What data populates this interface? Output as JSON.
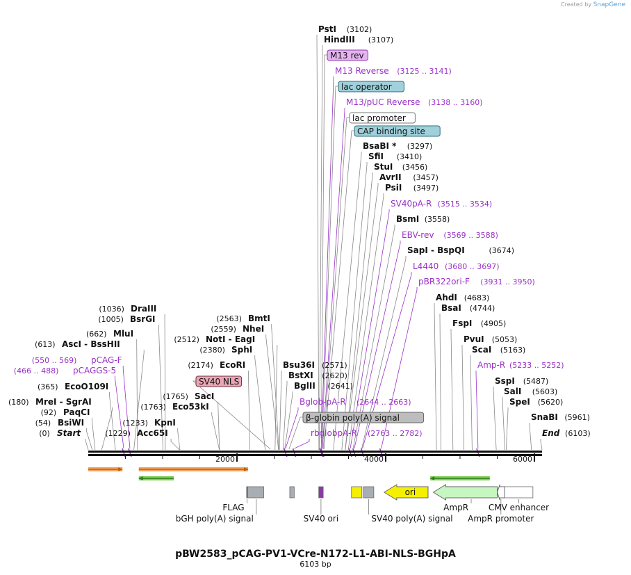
{
  "header": {
    "credit_prefix": "Created by",
    "credit_brand": "SnapGene"
  },
  "plasmid": {
    "name": "pBW2583_pCAG-PV1-VCre-N172-L1-ABI-NLS-BGHpA",
    "length": "6103 bp",
    "total_bp": 6103
  },
  "colors": {
    "enzyme": "#000000",
    "primer": "#9b30c8",
    "line": "#777777",
    "backbone": "#111111"
  },
  "axis": {
    "ticks": [
      {
        "bp": 2000,
        "label": "2000"
      },
      {
        "bp": 4000,
        "label": "4000"
      },
      {
        "bp": 6000,
        "label": "6000"
      }
    ]
  },
  "sites": [
    {
      "name": "Start",
      "pos": "(0)",
      "bp": 0,
      "kind": "enzyme",
      "italic": true
    },
    {
      "name": "BsiWI",
      "pos": "(54)",
      "bp": 54,
      "kind": "enzyme"
    },
    {
      "name": "PaqCI",
      "pos": "(92)",
      "bp": 92,
      "kind": "enzyme"
    },
    {
      "name": "MreI  -  SgrAI",
      "pos": "(180)",
      "bp": 180,
      "kind": "enzyme"
    },
    {
      "name": "EcoO109I",
      "pos": "(365)",
      "bp": 365,
      "kind": "enzyme"
    },
    {
      "name": "pCAGGS-5",
      "pos": "(466 .. 488)",
      "bp": 477,
      "kind": "primer"
    },
    {
      "name": "pCAG-F",
      "pos": "(550 .. 569)",
      "bp": 560,
      "kind": "primer"
    },
    {
      "name": "AscI  -  BssHII",
      "pos": "(613)",
      "bp": 613,
      "kind": "enzyme"
    },
    {
      "name": "MluI",
      "pos": "(662)",
      "bp": 662,
      "kind": "enzyme"
    },
    {
      "name": "BsrGI",
      "pos": "(1005)",
      "bp": 1005,
      "kind": "enzyme"
    },
    {
      "name": "DraIII",
      "pos": "(1036)",
      "bp": 1036,
      "kind": "enzyme"
    },
    {
      "name": "Acc65I",
      "pos": "(1229)",
      "bp": 1229,
      "kind": "enzyme"
    },
    {
      "name": "KpnI",
      "pos": "(1233)",
      "bp": 1233,
      "kind": "enzyme"
    },
    {
      "name": "Eco53kI",
      "pos": "(1763)",
      "bp": 1763,
      "kind": "enzyme"
    },
    {
      "name": "SacI",
      "pos": "(1765)",
      "bp": 1765,
      "kind": "enzyme"
    },
    {
      "name": "EcoRI",
      "pos": "(2174)",
      "bp": 2174,
      "kind": "enzyme"
    },
    {
      "name": "SphI",
      "pos": "(2380)",
      "bp": 2380,
      "kind": "enzyme"
    },
    {
      "name": "NotI  -  EagI",
      "pos": "(2512)",
      "bp": 2512,
      "kind": "enzyme"
    },
    {
      "name": "NheI",
      "pos": "(2559)",
      "bp": 2559,
      "kind": "enzyme"
    },
    {
      "name": "BmtI",
      "pos": "(2563)",
      "bp": 2563,
      "kind": "enzyme"
    },
    {
      "name": "Bsu36I",
      "pos": "(2571)",
      "bp": 2571,
      "kind": "enzyme"
    },
    {
      "name": "BstXI",
      "pos": "(2620)",
      "bp": 2620,
      "kind": "enzyme"
    },
    {
      "name": "BglII",
      "pos": "(2641)",
      "bp": 2641,
      "kind": "enzyme"
    },
    {
      "name": "Bglob-pA-R",
      "pos": "(2644 .. 2663)",
      "bp": 2653,
      "kind": "primer"
    },
    {
      "name": "rbglobpA-R",
      "pos": "(2763 .. 2782)",
      "bp": 2772,
      "kind": "primer"
    },
    {
      "name": "PstI",
      "pos": "(3102)",
      "bp": 3102,
      "kind": "enzyme"
    },
    {
      "name": "HindIII",
      "pos": "(3107)",
      "bp": 3107,
      "kind": "enzyme"
    },
    {
      "name": "M13 Reverse",
      "pos": "(3125 .. 3141)",
      "bp": 3133,
      "kind": "primer"
    },
    {
      "name": "M13/pUC Reverse",
      "pos": "(3138 .. 3160)",
      "bp": 3149,
      "kind": "primer"
    },
    {
      "name": "BsaBI *",
      "pos": "(3297)",
      "bp": 3297,
      "kind": "enzyme"
    },
    {
      "name": "SfiI",
      "pos": "(3410)",
      "bp": 3410,
      "kind": "enzyme"
    },
    {
      "name": "StuI",
      "pos": "(3456)",
      "bp": 3456,
      "kind": "enzyme"
    },
    {
      "name": "AvrII",
      "pos": "(3457)",
      "bp": 3457,
      "kind": "enzyme"
    },
    {
      "name": "PsiI",
      "pos": "(3497)",
      "bp": 3497,
      "kind": "enzyme"
    },
    {
      "name": "SV40pA-R",
      "pos": "(3515 .. 3534)",
      "bp": 3524,
      "kind": "primer"
    },
    {
      "name": "BsmI",
      "pos": "(3558)",
      "bp": 3558,
      "kind": "enzyme"
    },
    {
      "name": "EBV-rev",
      "pos": "(3569 .. 3588)",
      "bp": 3578,
      "kind": "primer"
    },
    {
      "name": "SapI  -  BspQI",
      "pos": "(3674)",
      "bp": 3674,
      "kind": "enzyme"
    },
    {
      "name": "L4440",
      "pos": "(3680 .. 3697)",
      "bp": 3688,
      "kind": "primer"
    },
    {
      "name": "pBR322ori-F",
      "pos": "(3931 .. 3950)",
      "bp": 3940,
      "kind": "primer"
    },
    {
      "name": "AhdI",
      "pos": "(4683)",
      "bp": 4683,
      "kind": "enzyme"
    },
    {
      "name": "BsaI",
      "pos": "(4744)",
      "bp": 4744,
      "kind": "enzyme"
    },
    {
      "name": "FspI",
      "pos": "(4905)",
      "bp": 4905,
      "kind": "enzyme"
    },
    {
      "name": "PvuI",
      "pos": "(5053)",
      "bp": 5053,
      "kind": "enzyme"
    },
    {
      "name": "ScaI",
      "pos": "(5163)",
      "bp": 5163,
      "kind": "enzyme"
    },
    {
      "name": "Amp-R",
      "pos": "(5233 .. 5252)",
      "bp": 5242,
      "kind": "primer"
    },
    {
      "name": "SspI",
      "pos": "(5487)",
      "bp": 5487,
      "kind": "enzyme"
    },
    {
      "name": "SalI",
      "pos": "(5603)",
      "bp": 5603,
      "kind": "enzyme"
    },
    {
      "name": "SpeI",
      "pos": "(5620)",
      "bp": 5620,
      "kind": "enzyme"
    },
    {
      "name": "SnaBI",
      "pos": "(5961)",
      "bp": 5961,
      "kind": "enzyme"
    },
    {
      "name": "End",
      "pos": "(6103)",
      "bp": 6103,
      "kind": "enzyme",
      "italic": true
    }
  ],
  "boxed_labels": [
    {
      "name": "M13 rev",
      "bp": 3133,
      "fill": "#e5b4f0",
      "stroke": "#8a3aa8"
    },
    {
      "name": "lac operator",
      "bp": 3140,
      "fill": "#9fd0db",
      "stroke": "#2d6c7a"
    },
    {
      "name": "lac promoter",
      "bp": 3160,
      "fill": "#ffffff",
      "stroke": "#777777"
    },
    {
      "name": "CAP binding site",
      "bp": 3170,
      "fill": "#9fd0db",
      "stroke": "#2d6c7a"
    },
    {
      "name": "SV40 NLS",
      "bp": 2450,
      "fill": "#e7a7b5",
      "stroke": "#7a2d3d"
    },
    {
      "name": "β-globin poly(A) signal",
      "bp": 2700,
      "fill": "#bdbdbd",
      "stroke": "#666666"
    }
  ],
  "feature_arrows": [
    {
      "name": "",
      "from": 0,
      "to": 460,
      "fill": "#f4a460",
      "stroke": "#c06000",
      "direction": "forward"
    },
    {
      "name": "",
      "from": 680,
      "to": 2150,
      "fill": "#f4a460",
      "stroke": "#c06000",
      "direction": "forward"
    },
    {
      "name": "",
      "from": 680,
      "to": 1150,
      "fill": "#7fcf4f",
      "stroke": "#2f7f1f",
      "direction": "reverse"
    },
    {
      "name": "",
      "from": 4600,
      "to": 5400,
      "fill": "#7fcf4f",
      "stroke": "#2f7f1f",
      "direction": "reverse"
    }
  ],
  "bottom_features": [
    {
      "name": "",
      "from": 2130,
      "to": 2142,
      "fill": "#7a2d3d",
      "shape": "box"
    },
    {
      "name": "",
      "from": 2142,
      "to": 2360,
      "fill": "#a9aeb5",
      "shape": "box"
    },
    {
      "name": "",
      "from": 2710,
      "to": 2770,
      "fill": "#a9aeb5",
      "shape": "box"
    },
    {
      "name": "",
      "from": 3100,
      "to": 3160,
      "fill": "#8a3aa8",
      "shape": "box"
    },
    {
      "name": "",
      "from": 3540,
      "to": 3680,
      "fill": "#f5f000",
      "shape": "box"
    },
    {
      "name": "",
      "from": 3700,
      "to": 3840,
      "fill": "#a9aeb5",
      "shape": "box"
    },
    {
      "name": "ori",
      "from": 3980,
      "to": 4570,
      "fill": "#f5f000",
      "shape": "arrow-left"
    },
    {
      "name": "",
      "from": 4640,
      "to": 5500,
      "fill": "#c7f7c0",
      "shape": "arrow-left"
    },
    {
      "name": "",
      "from": 5500,
      "to": 5600,
      "fill": "#ffffff",
      "shape": "arrow-left"
    },
    {
      "name": "",
      "from": 5600,
      "to": 5980,
      "fill": "#ffffff",
      "shape": "box"
    }
  ],
  "feature_labels": [
    {
      "text": "FLAG",
      "bp": 2136,
      "row": 1,
      "anchor": "end"
    },
    {
      "text": "bGH poly(A) signal",
      "bp": 2260,
      "row": 2,
      "anchor": "end"
    },
    {
      "text": "SV40 ori",
      "bp": 3130,
      "row": 2,
      "anchor": "middle"
    },
    {
      "text": "SV40 poly(A) signal",
      "bp": 3770,
      "row": 2,
      "anchor": "start"
    },
    {
      "text": "AmpR",
      "bp": 5150,
      "row": 1,
      "anchor": "end"
    },
    {
      "text": "AmpR promoter",
      "bp": 5550,
      "row": 2,
      "anchor": "middle"
    },
    {
      "text": "CMV enhancer",
      "bp": 5790,
      "row": 1,
      "anchor": "middle"
    }
  ]
}
